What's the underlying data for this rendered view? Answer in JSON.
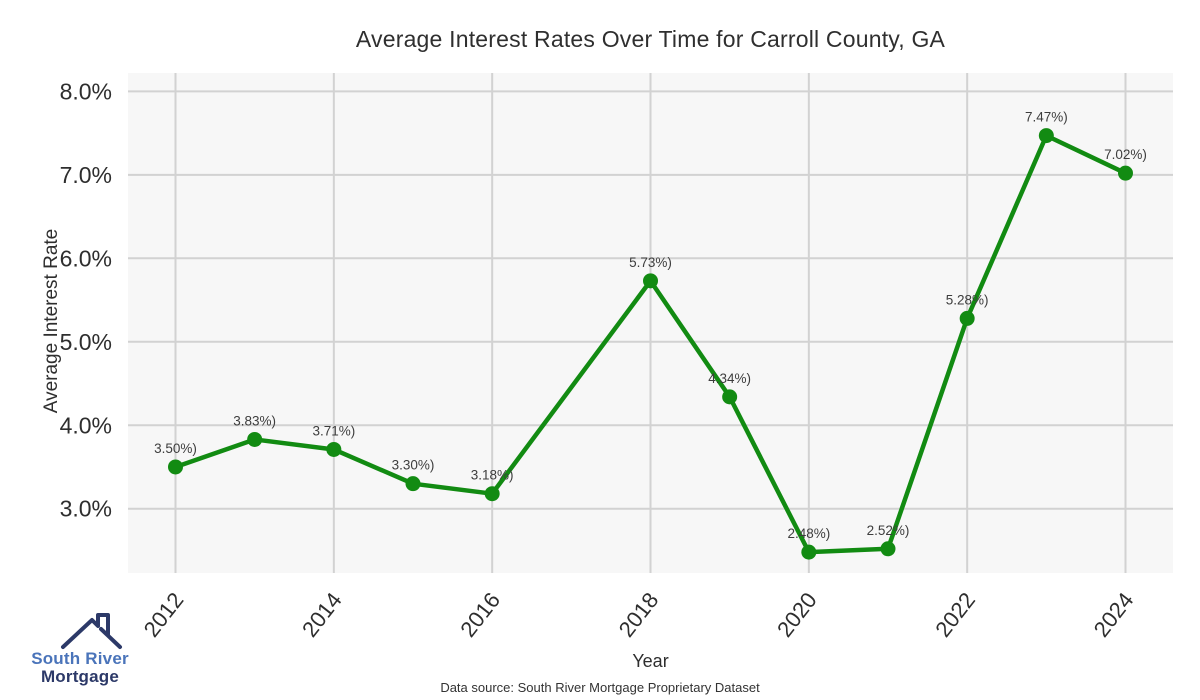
{
  "chart_data": {
    "type": "line",
    "title": "Average Interest Rates Over Time for Carroll County, GA",
    "xlabel": "Year",
    "ylabel": "Average Interest Rate",
    "x": [
      2012,
      2013,
      2014,
      2015,
      2016,
      2018,
      2019,
      2020,
      2021,
      2022,
      2023,
      2024
    ],
    "values": [
      3.5,
      3.83,
      3.71,
      3.3,
      3.18,
      5.73,
      4.34,
      2.48,
      2.52,
      5.28,
      7.47,
      7.02
    ],
    "point_labels": [
      "3.50%)",
      "3.83%)",
      "3.71%)",
      "3.30%)",
      "3.18%)",
      "5.73%)",
      "4.34%)",
      "2.48%)",
      "2.52%)",
      "5.28%)",
      "7.47%)",
      "7.02%)"
    ],
    "x_tick_values": [
      2012,
      2014,
      2016,
      2018,
      2020,
      2022,
      2024
    ],
    "x_tick_labels": [
      "2012",
      "2014",
      "2016",
      "2018",
      "2020",
      "2022",
      "2024"
    ],
    "y_tick_values": [
      8.0,
      7.0,
      6.0,
      5.0,
      4.0,
      3.0
    ],
    "y_tick_labels": [
      "8.0%",
      "7.0%",
      "6.0%",
      "5.0%",
      "4.0%",
      "3.0%"
    ],
    "ylim": [
      2.23,
      8.22
    ],
    "xlim": [
      2011.4,
      2024.6
    ],
    "grid": true,
    "legend_position": "none",
    "line_color": "#128b12",
    "marker_color": "#128b12",
    "plot_bg_color": "#f7f7f7",
    "grid_color": "#d2d2d2",
    "tick_color": "#2e2e2e",
    "point_label_color": "#3d3d3d",
    "source_note": "Data source: South River Mortgage Proprietary Dataset"
  },
  "logo": {
    "line1": "South River",
    "line2": "Mortgage",
    "color_primary": "#4a74ba",
    "color_secondary": "#2c3968"
  }
}
